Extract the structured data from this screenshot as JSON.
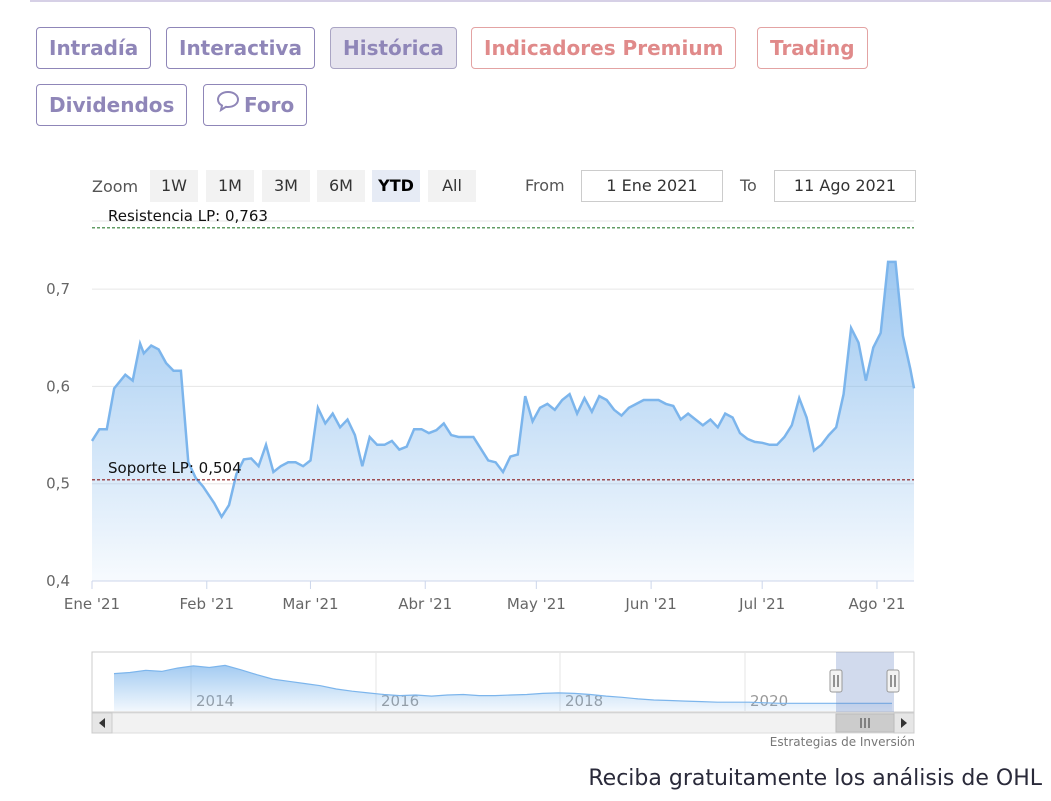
{
  "tabs": [
    {
      "label": "Intradía",
      "kind": "normal"
    },
    {
      "label": "Interactiva",
      "kind": "normal"
    },
    {
      "label": "Histórica",
      "kind": "active"
    },
    {
      "label": "Indicadores Premium",
      "kind": "premium"
    },
    {
      "label": "Trading",
      "kind": "premium"
    },
    {
      "label": "Dividendos",
      "kind": "normal"
    },
    {
      "label": "Foro",
      "kind": "normal",
      "icon": "chat-bubble-icon"
    }
  ],
  "range_selector": {
    "zoom_label": "Zoom",
    "buttons": [
      "1W",
      "1M",
      "3M",
      "6M",
      "YTD",
      "All"
    ],
    "selected": "YTD",
    "from_label": "From",
    "from_value": "1 Ene 2021",
    "to_label": "To",
    "to_value": "11 Ago 2021"
  },
  "chart_data": {
    "type": "area",
    "title": "",
    "xlabel": "",
    "ylabel": "",
    "x_range": [
      "2021-01-01",
      "2021-08-11"
    ],
    "ylim": [
      0.4,
      0.77
    ],
    "y_ticks": [
      "0,4",
      "0,5",
      "0,6",
      "0,7"
    ],
    "x_ticks": [
      "Ene '21",
      "Feb '21",
      "Mar '21",
      "Abr '21",
      "May '21",
      "Jun '21",
      "Jul '21",
      "Ago '21"
    ],
    "series": [
      {
        "color": "#7cb5ec",
        "points": [
          [
            "2021-01-01",
            0.544
          ],
          [
            "2021-01-03",
            0.556
          ],
          [
            "2021-01-05",
            0.556
          ],
          [
            "2021-01-07",
            0.598
          ],
          [
            "2021-01-10",
            0.612
          ],
          [
            "2021-01-12",
            0.606
          ],
          [
            "2021-01-14",
            0.644
          ],
          [
            "2021-01-15",
            0.634
          ],
          [
            "2021-01-17",
            0.642
          ],
          [
            "2021-01-19",
            0.638
          ],
          [
            "2021-01-21",
            0.624
          ],
          [
            "2021-01-23",
            0.616
          ],
          [
            "2021-01-25",
            0.616
          ],
          [
            "2021-01-27",
            0.522
          ],
          [
            "2021-01-29",
            0.506
          ],
          [
            "2021-01-31",
            0.497
          ],
          [
            "2021-02-03",
            0.48
          ],
          [
            "2021-02-05",
            0.466
          ],
          [
            "2021-02-07",
            0.478
          ],
          [
            "2021-02-09",
            0.51
          ],
          [
            "2021-02-11",
            0.525
          ],
          [
            "2021-02-13",
            0.526
          ],
          [
            "2021-02-15",
            0.518
          ],
          [
            "2021-02-17",
            0.54
          ],
          [
            "2021-02-19",
            0.512
          ],
          [
            "2021-02-21",
            0.518
          ],
          [
            "2021-02-23",
            0.522
          ],
          [
            "2021-02-25",
            0.522
          ],
          [
            "2021-02-27",
            0.518
          ],
          [
            "2021-03-01",
            0.524
          ],
          [
            "2021-03-03",
            0.578
          ],
          [
            "2021-03-05",
            0.562
          ],
          [
            "2021-03-07",
            0.572
          ],
          [
            "2021-03-09",
            0.558
          ],
          [
            "2021-03-11",
            0.566
          ],
          [
            "2021-03-13",
            0.55
          ],
          [
            "2021-03-15",
            0.518
          ],
          [
            "2021-03-17",
            0.548
          ],
          [
            "2021-03-19",
            0.54
          ],
          [
            "2021-03-21",
            0.54
          ],
          [
            "2021-03-23",
            0.544
          ],
          [
            "2021-03-25",
            0.535
          ],
          [
            "2021-03-27",
            0.538
          ],
          [
            "2021-03-29",
            0.556
          ],
          [
            "2021-03-31",
            0.556
          ],
          [
            "2021-04-02",
            0.552
          ],
          [
            "2021-04-04",
            0.555
          ],
          [
            "2021-04-06",
            0.562
          ],
          [
            "2021-04-08",
            0.55
          ],
          [
            "2021-04-10",
            0.548
          ],
          [
            "2021-04-12",
            0.548
          ],
          [
            "2021-04-14",
            0.548
          ],
          [
            "2021-04-16",
            0.536
          ],
          [
            "2021-04-18",
            0.524
          ],
          [
            "2021-04-20",
            0.522
          ],
          [
            "2021-04-22",
            0.512
          ],
          [
            "2021-04-24",
            0.528
          ],
          [
            "2021-04-26",
            0.53
          ],
          [
            "2021-04-28",
            0.59
          ],
          [
            "2021-04-30",
            0.564
          ],
          [
            "2021-05-02",
            0.578
          ],
          [
            "2021-05-04",
            0.582
          ],
          [
            "2021-05-06",
            0.576
          ],
          [
            "2021-05-08",
            0.586
          ],
          [
            "2021-05-10",
            0.592
          ],
          [
            "2021-05-12",
            0.572
          ],
          [
            "2021-05-14",
            0.588
          ],
          [
            "2021-05-16",
            0.574
          ],
          [
            "2021-05-18",
            0.59
          ],
          [
            "2021-05-20",
            0.586
          ],
          [
            "2021-05-22",
            0.576
          ],
          [
            "2021-05-24",
            0.57
          ],
          [
            "2021-05-26",
            0.578
          ],
          [
            "2021-05-28",
            0.582
          ],
          [
            "2021-05-30",
            0.586
          ],
          [
            "2021-06-01",
            0.586
          ],
          [
            "2021-06-03",
            0.586
          ],
          [
            "2021-06-05",
            0.582
          ],
          [
            "2021-06-07",
            0.58
          ],
          [
            "2021-06-09",
            0.566
          ],
          [
            "2021-06-11",
            0.572
          ],
          [
            "2021-06-13",
            0.566
          ],
          [
            "2021-06-15",
            0.56
          ],
          [
            "2021-06-17",
            0.566
          ],
          [
            "2021-06-19",
            0.558
          ],
          [
            "2021-06-21",
            0.572
          ],
          [
            "2021-06-23",
            0.568
          ],
          [
            "2021-06-25",
            0.552
          ],
          [
            "2021-06-27",
            0.546
          ],
          [
            "2021-06-29",
            0.543
          ],
          [
            "2021-07-01",
            0.542
          ],
          [
            "2021-07-03",
            0.54
          ],
          [
            "2021-07-05",
            0.54
          ],
          [
            "2021-07-07",
            0.548
          ],
          [
            "2021-07-09",
            0.56
          ],
          [
            "2021-07-11",
            0.588
          ],
          [
            "2021-07-13",
            0.568
          ],
          [
            "2021-07-15",
            0.534
          ],
          [
            "2021-07-17",
            0.54
          ],
          [
            "2021-07-19",
            0.55
          ],
          [
            "2021-07-21",
            0.558
          ],
          [
            "2021-07-23",
            0.592
          ],
          [
            "2021-07-25",
            0.66
          ],
          [
            "2021-07-27",
            0.645
          ],
          [
            "2021-07-29",
            0.606
          ],
          [
            "2021-07-31",
            0.64
          ],
          [
            "2021-08-02",
            0.655
          ],
          [
            "2021-08-04",
            0.728
          ],
          [
            "2021-08-06",
            0.728
          ],
          [
            "2021-08-08",
            0.652
          ],
          [
            "2021-08-10",
            0.618
          ],
          [
            "2021-08-11",
            0.598
          ]
        ]
      }
    ],
    "plot_lines": [
      {
        "label": "Resistencia LP: 0,763",
        "value": 0.763,
        "color": "#2e7d32",
        "style": "dashed"
      },
      {
        "label": "Soporte LP: 0,504",
        "value": 0.504,
        "color": "#8b1a1a",
        "style": "dashed"
      }
    ],
    "navigator": {
      "years": [
        "2014",
        "2016",
        "2018",
        "2020"
      ],
      "profile": [
        0.68,
        0.7,
        0.74,
        0.72,
        0.78,
        0.82,
        0.79,
        0.83,
        0.75,
        0.66,
        0.58,
        0.54,
        0.5,
        0.46,
        0.4,
        0.36,
        0.33,
        0.3,
        0.28,
        0.29,
        0.27,
        0.29,
        0.3,
        0.28,
        0.28,
        0.29,
        0.3,
        0.32,
        0.33,
        0.32,
        0.3,
        0.27,
        0.25,
        0.22,
        0.2,
        0.19,
        0.18,
        0.17,
        0.16,
        0.16,
        0.16,
        0.15,
        0.14,
        0.14,
        0.14,
        0.14,
        0.14,
        0.14,
        0.14,
        0.14
      ]
    },
    "credit": "Estrategias de Inversión"
  },
  "footer": {
    "text": "Reciba gratuitamente los análisis de OHL"
  }
}
